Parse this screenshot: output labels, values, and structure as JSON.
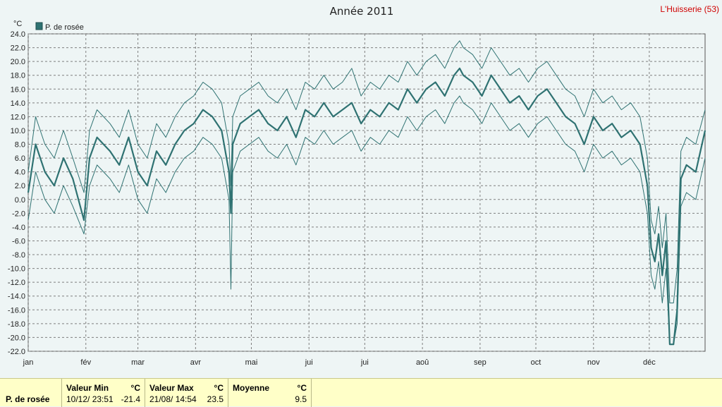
{
  "chart_data": {
    "type": "line",
    "title": "Année 2011",
    "station": "L'Huisserie (53)",
    "unit_label": "°C",
    "legend": "P. de rosée",
    "ylim": [
      -22,
      24
    ],
    "yticks": [
      "24.0",
      "22.0",
      "20.0",
      "18.0",
      "16.0",
      "14.0",
      "12.0",
      "10.0",
      "8.0",
      "6.0",
      "4.0",
      "2.0",
      "0.0",
      "-2.0",
      "-4.0",
      "-6.0",
      "-8.0",
      "-10.0",
      "-12.0",
      "-14.0",
      "-16.0",
      "-18.0",
      "-20.0",
      "-22.0"
    ],
    "months": [
      "jan",
      "fév",
      "mar",
      "avr",
      "mai",
      "jui",
      "jui",
      "aoû",
      "sep",
      "oct",
      "nov",
      "déc"
    ],
    "grid": true,
    "colors": {
      "line": "#2f7272",
      "grid": "#7f7f7f",
      "plot_bg": "#eef5f5"
    },
    "x_unit": "day of year (1-365)",
    "series": [
      {
        "name": "P. de rosée",
        "role": "mean",
        "x": [
          1,
          5,
          10,
          15,
          20,
          25,
          31,
          34,
          38,
          45,
          50,
          55,
          60,
          65,
          70,
          75,
          80,
          85,
          90,
          95,
          100,
          105,
          109,
          110,
          111,
          115,
          120,
          125,
          130,
          135,
          140,
          145,
          150,
          155,
          160,
          165,
          170,
          175,
          180,
          185,
          190,
          195,
          200,
          205,
          210,
          215,
          220,
          225,
          230,
          233,
          235,
          240,
          245,
          250,
          255,
          260,
          265,
          270,
          275,
          280,
          285,
          290,
          295,
          300,
          305,
          310,
          315,
          320,
          325,
          330,
          334,
          336,
          338,
          340,
          342,
          344,
          346,
          348,
          350,
          352,
          355,
          360,
          365
        ],
        "y": [
          1,
          8,
          4,
          2,
          6,
          3,
          -3,
          6,
          9,
          7,
          5,
          9,
          4,
          2,
          7,
          5,
          8,
          10,
          11,
          13,
          12,
          10,
          4,
          -2,
          8,
          11,
          12,
          13,
          11,
          10,
          12,
          9,
          13,
          12,
          14,
          12,
          13,
          14,
          11,
          13,
          12,
          14,
          13,
          16,
          14,
          16,
          17,
          15,
          18,
          19,
          18,
          17,
          15,
          18,
          16,
          14,
          15,
          13,
          15,
          16,
          14,
          12,
          11,
          8,
          12,
          10,
          11,
          9,
          10,
          8,
          2,
          -7,
          -9,
          -5,
          -11,
          -6,
          -21,
          -21,
          -16,
          3,
          5,
          4,
          10
        ]
      },
      {
        "name": "P. de rosée",
        "role": "upper",
        "x": [
          1,
          5,
          10,
          15,
          20,
          25,
          31,
          34,
          38,
          45,
          50,
          55,
          60,
          65,
          70,
          75,
          80,
          85,
          90,
          95,
          100,
          105,
          109,
          110,
          111,
          115,
          120,
          125,
          130,
          135,
          140,
          145,
          150,
          155,
          160,
          165,
          170,
          175,
          180,
          185,
          190,
          195,
          200,
          205,
          210,
          215,
          220,
          225,
          230,
          233,
          235,
          240,
          245,
          250,
          255,
          260,
          265,
          270,
          275,
          280,
          285,
          290,
          295,
          300,
          305,
          310,
          315,
          320,
          325,
          330,
          334,
          336,
          338,
          340,
          342,
          344,
          346,
          348,
          350,
          352,
          355,
          360,
          365
        ],
        "y": [
          4,
          12,
          8,
          6,
          10,
          6,
          1,
          10,
          13,
          11,
          9,
          13,
          8,
          6,
          11,
          9,
          12,
          14,
          15,
          17,
          16,
          14,
          8,
          2,
          12,
          15,
          16,
          17,
          15,
          14,
          16,
          13,
          17,
          16,
          18,
          16,
          17,
          19,
          15,
          17,
          16,
          18,
          17,
          20,
          18,
          20,
          21,
          19,
          22,
          23,
          22,
          21,
          19,
          22,
          20,
          18,
          19,
          17,
          19,
          20,
          18,
          16,
          15,
          12,
          16,
          14,
          15,
          13,
          14,
          12,
          6,
          -3,
          -5,
          -1,
          -7,
          -2,
          -15,
          -15,
          -10,
          7,
          9,
          8,
          13
        ]
      },
      {
        "name": "P. de rosée",
        "role": "lower",
        "x": [
          1,
          5,
          10,
          15,
          20,
          25,
          31,
          34,
          38,
          45,
          50,
          55,
          60,
          65,
          70,
          75,
          80,
          85,
          90,
          95,
          100,
          105,
          109,
          110,
          111,
          115,
          120,
          125,
          130,
          135,
          140,
          145,
          150,
          155,
          160,
          165,
          170,
          175,
          180,
          185,
          190,
          195,
          200,
          205,
          210,
          215,
          220,
          225,
          230,
          233,
          235,
          240,
          245,
          250,
          255,
          260,
          265,
          270,
          275,
          280,
          285,
          290,
          295,
          300,
          305,
          310,
          315,
          320,
          325,
          330,
          334,
          336,
          338,
          340,
          342,
          344,
          346,
          348,
          350,
          352,
          355,
          360,
          365
        ],
        "y": [
          -3,
          4,
          0,
          -2,
          2,
          -1,
          -5,
          2,
          5,
          3,
          1,
          5,
          0,
          -2,
          3,
          1,
          4,
          6,
          7,
          9,
          8,
          6,
          0,
          -13,
          4,
          7,
          8,
          9,
          7,
          6,
          8,
          5,
          9,
          8,
          10,
          8,
          9,
          10,
          7,
          9,
          8,
          10,
          9,
          12,
          10,
          12,
          13,
          11,
          14,
          15,
          14,
          13,
          11,
          14,
          12,
          10,
          11,
          9,
          11,
          12,
          10,
          8,
          7,
          4,
          8,
          6,
          7,
          5,
          6,
          4,
          -2,
          -11,
          -13,
          -9,
          -15,
          -10,
          -21,
          -21,
          -18,
          -1,
          1,
          0,
          6
        ]
      }
    ]
  },
  "stats": {
    "series_label": "P. de rosée",
    "min_header": "Valeur Min",
    "min_unit": "°C",
    "min_date": "10/12/  23:51",
    "min_value": "-21.4",
    "max_header": "Valeur Max",
    "max_unit": "°C",
    "max_date": "21/08/  14:54",
    "max_value": "23.5",
    "avg_header": "Moyenne",
    "avg_unit": "°C",
    "avg_value": "9.5"
  }
}
